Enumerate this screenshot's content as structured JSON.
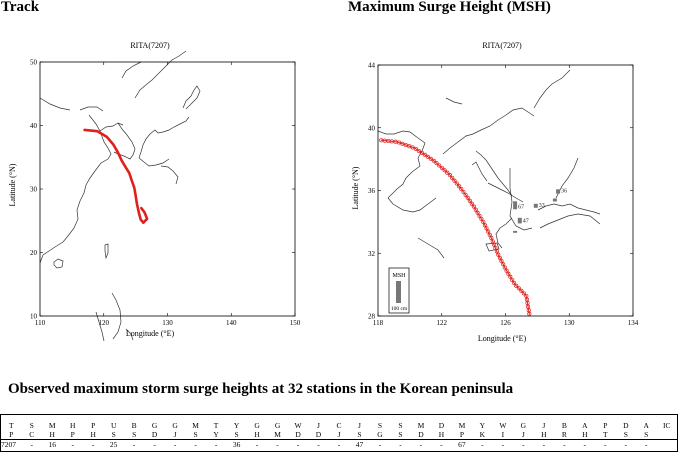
{
  "headings": {
    "left": "Track",
    "right": "Maximum Surge Height (MSH)",
    "table_title": "Observed maximum storm surge heights at 32 stations in the Korean peninsula"
  },
  "colors": {
    "track": "#e0201c",
    "coast": "#333333",
    "msh_bar": "#777777"
  },
  "track_map": {
    "title": "RITA(7207)",
    "xlabel": "Longitude (°E)",
    "ylabel": "Latitude (°N)",
    "xticks": [
      "110",
      "120",
      "130",
      "140",
      "150"
    ],
    "yticks": [
      "10",
      "20",
      "30",
      "40",
      "50"
    ],
    "xlim": [
      110,
      150
    ],
    "ylim": [
      10,
      50
    ],
    "track": [
      [
        117,
        39.3
      ],
      [
        119,
        39.1
      ],
      [
        120.5,
        38.2
      ],
      [
        121.5,
        37
      ],
      [
        122.2,
        35.8
      ],
      [
        122.8,
        34.5
      ],
      [
        123.4,
        33.5
      ],
      [
        124,
        32.5
      ],
      [
        124.4,
        31.3
      ],
      [
        124.8,
        30.2
      ],
      [
        125,
        29
      ],
      [
        125.2,
        27.7
      ],
      [
        125.5,
        26.3
      ],
      [
        125.8,
        25.2
      ],
      [
        126.2,
        24.7
      ],
      [
        126.8,
        25.3
      ],
      [
        126.4,
        26.3
      ],
      [
        125.9,
        27
      ]
    ]
  },
  "msh_map": {
    "title": "RITA(7207)",
    "xlabel": "Longitude (°E)",
    "ylabel": "Latitude (°N)",
    "xticks": [
      "118",
      "122",
      "126",
      "130",
      "134"
    ],
    "yticks": [
      "28",
      "32",
      "36",
      "40",
      "44"
    ],
    "xlim": [
      118,
      134
    ],
    "ylim": [
      28,
      44
    ],
    "track": [
      [
        118.2,
        39.2
      ],
      [
        119.2,
        39.1
      ],
      [
        120.3,
        38.7
      ],
      [
        121.5,
        37.9
      ],
      [
        122.5,
        37
      ],
      [
        123.3,
        36
      ],
      [
        124,
        35
      ],
      [
        124.6,
        34
      ],
      [
        125.1,
        33
      ],
      [
        125.5,
        32
      ],
      [
        126,
        31
      ],
      [
        126.6,
        30
      ],
      [
        127.3,
        29.3
      ],
      [
        127.5,
        28.1
      ]
    ],
    "stations": [
      {
        "label": "36",
        "lon": 129.3,
        "lat": 35.8,
        "msh_cm": 36
      },
      {
        "label": "67",
        "lon": 126.6,
        "lat": 34.8,
        "msh_cm": 67
      },
      {
        "label": "33",
        "lon": 127.9,
        "lat": 34.9,
        "msh_cm": 33
      },
      {
        "label": "47",
        "lon": 126.9,
        "lat": 33.9,
        "msh_cm": 47
      },
      {
        "label": "",
        "lon": 129.1,
        "lat": 35.3,
        "msh_cm": 25
      },
      {
        "label": "",
        "lon": 126.6,
        "lat": 33.3,
        "msh_cm": 16
      }
    ],
    "legend": {
      "title": "MSH",
      "scale_label": "100 cm"
    }
  },
  "surge_table": {
    "codes": [
      "T\nP",
      "S\nC",
      "M\nH",
      "H\nP",
      "P\nH",
      "U\nS",
      "B\nS",
      "G\nD",
      "G\nJ",
      "M\nS",
      "T\nY",
      "Y\nS",
      "G\nH",
      "G\nM",
      "W\nD",
      "J\nD",
      "C\nJ",
      "J\nS",
      "S\nG",
      "S\nS",
      "M\nD",
      "D\nH",
      "M\nP",
      "Y\nK",
      "W\nI",
      "G\nJ",
      "J\nH",
      "B\nR",
      "A\nH",
      "P\nT",
      "D\nS",
      "A\nS",
      "IC"
    ],
    "values": [
      "7207",
      "-",
      "16",
      "-",
      "-",
      "25",
      "-",
      "-",
      "-",
      "-",
      "-",
      "36",
      "-",
      "-",
      "-",
      "-",
      "-",
      "47",
      "-",
      "-",
      "-",
      "-",
      "67",
      "-",
      "-",
      "-",
      "-",
      "-",
      "-",
      "-",
      "-",
      "-",
      ""
    ]
  }
}
